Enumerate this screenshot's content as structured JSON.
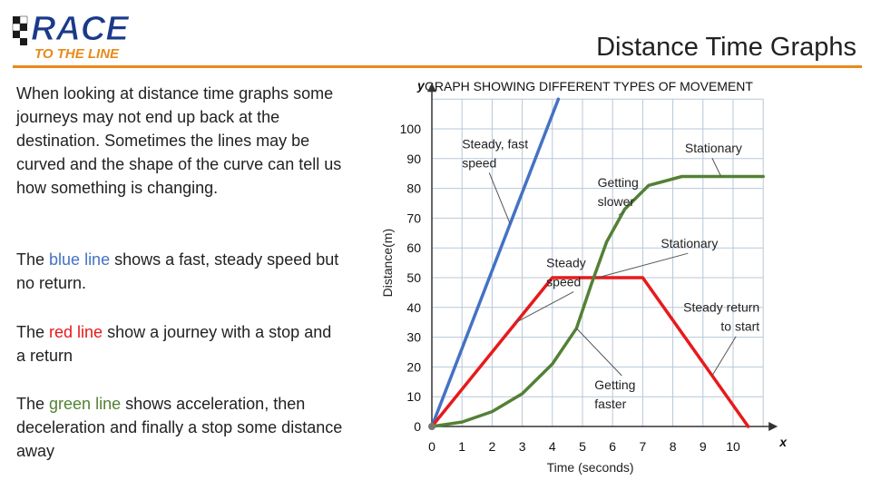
{
  "header": {
    "logo_line1": "RACE",
    "logo_line2": "TO THE LINE",
    "title": "Distance Time Graphs"
  },
  "body_text": {
    "intro": "When looking at distance time graphs some journeys may not end up back at the destination. Sometimes the lines may be curved and the shape of the curve can tell us how something is changing.",
    "blue": {
      "prefix": "The ",
      "colored": "blue line",
      "suffix": " shows a fast, steady speed but no return."
    },
    "red": {
      "prefix": "The ",
      "colored": "red line",
      "suffix": " show a journey with a stop and a return"
    },
    "green": {
      "prefix": "The ",
      "colored": "green line",
      "mid1": " shows ",
      "term1": "acceleration",
      "mid2": ", then ",
      "term2": "deceleration",
      "suffix": " and finally a stop some distance away"
    }
  },
  "colors": {
    "accent_rule": "#e88a1a",
    "blue": "#4472c4",
    "red": "#e8191b",
    "green": "#538135",
    "grid": "#b8c7d8"
  },
  "chart_data": {
    "type": "line",
    "title": "GRAPH SHOWING DIFFERENT TYPES OF MOVEMENT",
    "xlabel": "Time (seconds)",
    "ylabel": "Distance(m)",
    "x_axis_letter": "x",
    "y_axis_letter": "y",
    "xlim": [
      0,
      11
    ],
    "ylim": [
      0,
      110
    ],
    "xticks": [
      0,
      1,
      2,
      3,
      4,
      5,
      6,
      7,
      8,
      9,
      10
    ],
    "yticks": [
      0,
      10,
      20,
      30,
      40,
      50,
      60,
      70,
      80,
      90,
      100
    ],
    "grid": true,
    "series": [
      {
        "color": "blue",
        "points": [
          [
            0,
            0
          ],
          [
            4.2,
            110
          ]
        ]
      },
      {
        "color": "red",
        "points": [
          [
            0,
            0
          ],
          [
            4,
            50
          ],
          [
            7,
            50
          ],
          [
            10.5,
            0
          ]
        ]
      },
      {
        "color": "green",
        "points": [
          [
            0,
            0
          ],
          [
            1,
            1.5
          ],
          [
            2,
            5
          ],
          [
            3,
            11
          ],
          [
            4,
            21
          ],
          [
            4.8,
            33
          ],
          [
            5.3,
            48
          ],
          [
            5.8,
            62
          ],
          [
            6.4,
            73
          ],
          [
            7.2,
            81
          ],
          [
            8.3,
            84
          ],
          [
            11,
            84
          ]
        ]
      }
    ],
    "annotations": [
      {
        "text_lines": [
          "Steady, fast",
          "speed"
        ],
        "x": 1,
        "y": 93.5,
        "pointer_to": [
          2.6,
          68
        ]
      },
      {
        "text_lines": [
          "Stationary"
        ],
        "x": 8.4,
        "y": 92,
        "pointer_to": [
          9.6,
          84
        ]
      },
      {
        "text_lines": [
          "Getting",
          "slower"
        ],
        "x": 5.5,
        "y": 80.5,
        "pointer_to": [
          6.2,
          71
        ]
      },
      {
        "text_lines": [
          "Stationary"
        ],
        "x": 7.6,
        "y": 60,
        "pointer_to": [
          5.5,
          50
        ]
      },
      {
        "text_lines": [
          "Steady",
          "speed"
        ],
        "x": 3.8,
        "y": 53.5,
        "pointer_to": [
          2.8,
          35
        ]
      },
      {
        "text_lines": [
          "Steady return",
          "to start"
        ],
        "x": 11,
        "y": 38.5,
        "pointer_to": [
          9.3,
          17
        ]
      },
      {
        "text_lines": [
          "Getting",
          "faster"
        ],
        "x": 5.4,
        "y": 12.5,
        "pointer_to": [
          4.8,
          33
        ]
      }
    ]
  }
}
